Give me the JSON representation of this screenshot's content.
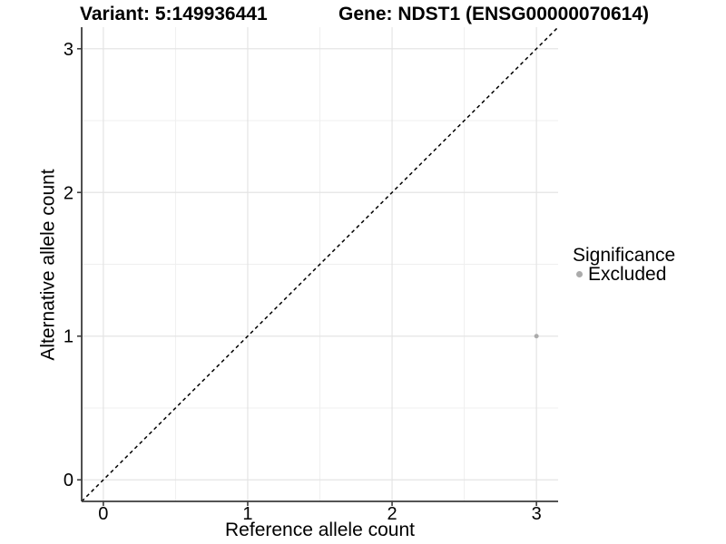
{
  "chart_data": {
    "type": "scatter",
    "title_left": "Variant: 5:149936441",
    "title_right": "Gene: NDST1 (ENSG00000070614)",
    "xlabel": "Reference allele count",
    "ylabel": "Alternative allele count",
    "xlim": [
      -0.15,
      3.15
    ],
    "ylim": [
      -0.15,
      3.15
    ],
    "xticks": [
      0,
      1,
      2,
      3
    ],
    "yticks": [
      0,
      1,
      2,
      3
    ],
    "grid": {
      "major": true,
      "minor": true,
      "major_color": "#e4e4e4",
      "minor_color": "#efefef"
    },
    "reference_line": {
      "kind": "identity y=x",
      "style": "dashed",
      "color": "#000000"
    },
    "series": [
      {
        "name": "Excluded",
        "color": "#ababab",
        "points": [
          [
            3,
            1
          ]
        ]
      }
    ],
    "legend": {
      "title": "Significance",
      "position": "right",
      "items": [
        {
          "label": "Excluded",
          "color": "#ababab"
        }
      ]
    }
  }
}
